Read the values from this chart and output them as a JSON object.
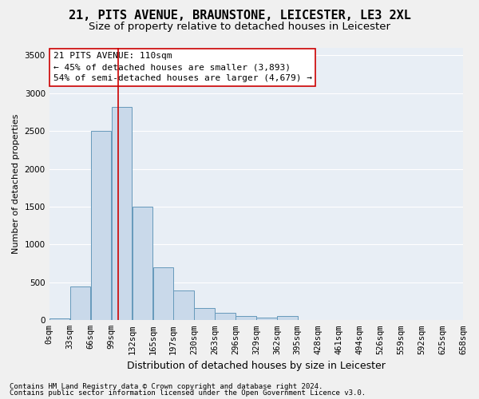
{
  "title1": "21, PITS AVENUE, BRAUNSTONE, LEICESTER, LE3 2XL",
  "title2": "Size of property relative to detached houses in Leicester",
  "xlabel": "Distribution of detached houses by size in Leicester",
  "ylabel": "Number of detached properties",
  "footer1": "Contains HM Land Registry data © Crown copyright and database right 2024.",
  "footer2": "Contains public sector information licensed under the Open Government Licence v3.0.",
  "annotation_title": "21 PITS AVENUE: 110sqm",
  "annotation_line1": "← 45% of detached houses are smaller (3,893)",
  "annotation_line2": "54% of semi-detached houses are larger (4,679) →",
  "property_size": 110,
  "bin_edges": [
    0,
    33,
    66,
    99,
    132,
    165,
    197,
    230,
    263,
    296,
    329,
    362,
    395,
    428,
    461,
    494,
    526,
    559,
    592,
    625,
    658
  ],
  "bar_values": [
    20,
    450,
    2500,
    2820,
    1500,
    700,
    390,
    160,
    100,
    60,
    30,
    60,
    5,
    0,
    0,
    0,
    0,
    0,
    0,
    0
  ],
  "bar_color": "#c9d9ea",
  "bar_edge_color": "#6699bb",
  "vline_color": "#cc0000",
  "vline_x": 110,
  "ylim": [
    0,
    3600
  ],
  "xlim": [
    0,
    658
  ],
  "fig_bg_color": "#f0f0f0",
  "plot_bg_color": "#e8eef5",
  "annotation_box_color": "#ffffff",
  "annotation_box_edge": "#cc0000",
  "grid_color": "#ffffff",
  "title1_fontsize": 11,
  "title2_fontsize": 9.5,
  "xlabel_fontsize": 9,
  "ylabel_fontsize": 8,
  "tick_fontsize": 7.5,
  "annotation_fontsize": 8,
  "footer_fontsize": 6.5
}
